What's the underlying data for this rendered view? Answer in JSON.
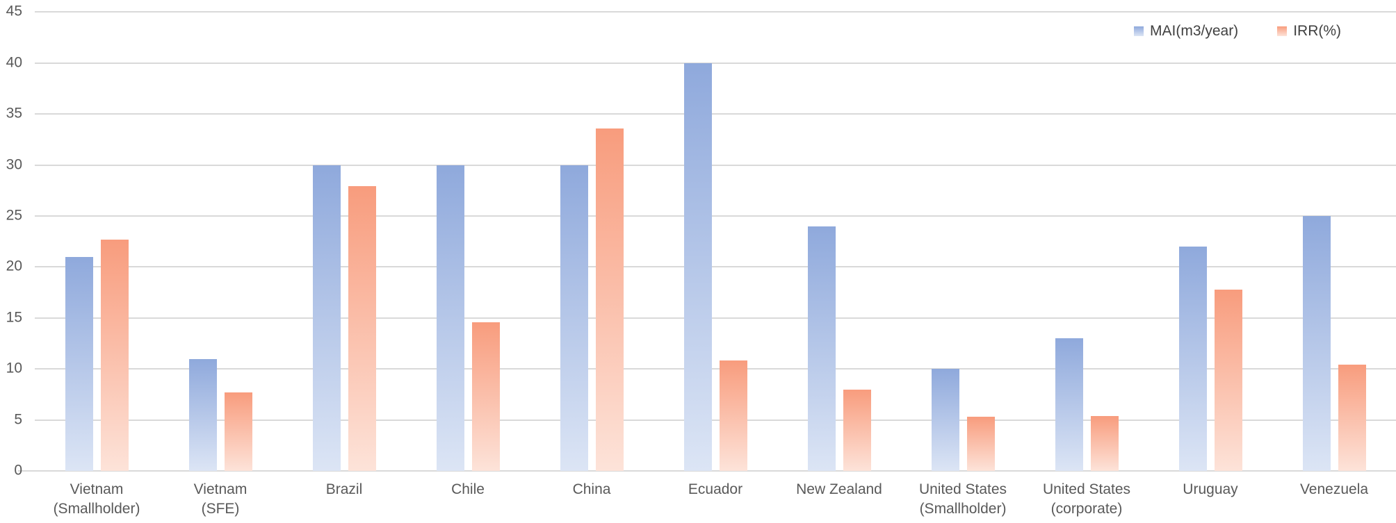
{
  "chart_data": {
    "type": "bar",
    "title": "",
    "categories": [
      [
        "Vietnam",
        "(Smallholder)"
      ],
      [
        "Vietnam",
        "(SFE)"
      ],
      [
        "Brazil"
      ],
      [
        "Chile"
      ],
      [
        "China"
      ],
      [
        "Ecuador"
      ],
      [
        "New Zealand"
      ],
      [
        "United States",
        "(Smallholder)"
      ],
      [
        "United States",
        "(corporate)"
      ],
      [
        "Uruguay"
      ],
      [
        "Venezuela"
      ]
    ],
    "series": [
      {
        "name": "MAI(m3/year)",
        "values": [
          21,
          11,
          30,
          30,
          30,
          40,
          24,
          10,
          13,
          22,
          25
        ],
        "color_top": "#8FA9DC",
        "color_bottom": "#DCE5F5"
      },
      {
        "name": "IRR(%)",
        "values": [
          22.7,
          7.7,
          27.9,
          14.6,
          33.6,
          10.8,
          8,
          5.3,
          5.4,
          17.8,
          10.4
        ],
        "color_top": "#F89C7D",
        "color_bottom": "#FDE3D9"
      }
    ],
    "yticks": [
      0,
      5,
      10,
      15,
      20,
      25,
      30,
      35,
      40,
      45
    ],
    "ylim": [
      0,
      45
    ],
    "grid": true,
    "legend_position": "top-right",
    "axis_color": "#D9D9D9",
    "tick_label_color": "#595959",
    "legend_text_color": "#404040"
  }
}
